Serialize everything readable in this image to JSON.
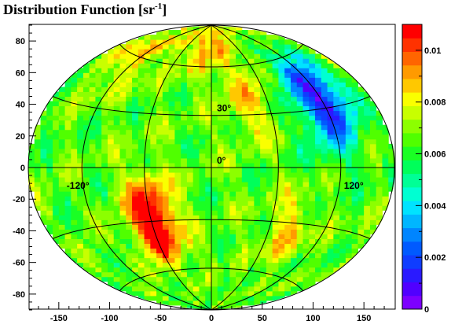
{
  "chart_data": {
    "type": "heatmap",
    "title_main": "Distribution Function [sr",
    "title_sup": "-1",
    "title_end": "]",
    "projection": "Hammer-Aitoff sky map",
    "xlim": [
      -180,
      180
    ],
    "ylim": [
      -90,
      90
    ],
    "x_ticks": [
      -150,
      -100,
      -50,
      0,
      50,
      100,
      150
    ],
    "y_ticks": [
      -80,
      -60,
      -40,
      -20,
      0,
      20,
      40,
      60,
      80
    ],
    "graticule_lon": [
      -180,
      -120,
      -60,
      0,
      60,
      120,
      180
    ],
    "graticule_lat": [
      -60,
      -30,
      0,
      30,
      60
    ],
    "annotations": [
      {
        "text": "30°",
        "lon": 0,
        "lat": 30
      },
      {
        "text": "0°",
        "lon": 0,
        "lat": 0
      },
      {
        "text": "-120°",
        "lon": -120,
        "lat": 0
      },
      {
        "text": "120°",
        "lon": 120,
        "lat": 0
      }
    ],
    "z_range": [
      0,
      0.011
    ],
    "z_ticks": [
      0,
      0.002,
      0.004,
      0.006,
      0.008,
      0.01
    ],
    "z_tick_labels": [
      "0",
      "0.002",
      "0.004",
      "0.006",
      "0.008",
      "0.01"
    ],
    "z_levels": 20,
    "palette": [
      "#7d00ff",
      "#5000ff",
      "#2a1aff",
      "#0f3dff",
      "#005aff",
      "#0085ff",
      "#00b6ff",
      "#00e3ff",
      "#00ffd2",
      "#00ff96",
      "#00ff5a",
      "#1aff24",
      "#50ff00",
      "#8cff00",
      "#c8ff00",
      "#faff00",
      "#ffc800",
      "#ff9a00",
      "#ff6500",
      "#ff3200",
      "#ff0000"
    ],
    "background_level": 0.0066,
    "features": [
      {
        "label": "minimum",
        "lon": 120,
        "lat": 35,
        "value": 0.0009
      },
      {
        "label": "maximum",
        "lon": -60,
        "lat": -22,
        "value": 0.0102
      },
      {
        "label": "maximum",
        "lon": -55,
        "lat": -38,
        "value": 0.0098
      },
      {
        "label": "excess",
        "lon": -5,
        "lat": 75,
        "value": 0.0088
      },
      {
        "label": "excess",
        "lon": 40,
        "lat": 38,
        "value": 0.0086
      },
      {
        "label": "excess",
        "lon": -130,
        "lat": 60,
        "value": 0.0085
      },
      {
        "label": "excess",
        "lon": 80,
        "lat": -35,
        "value": 0.0085
      }
    ]
  }
}
